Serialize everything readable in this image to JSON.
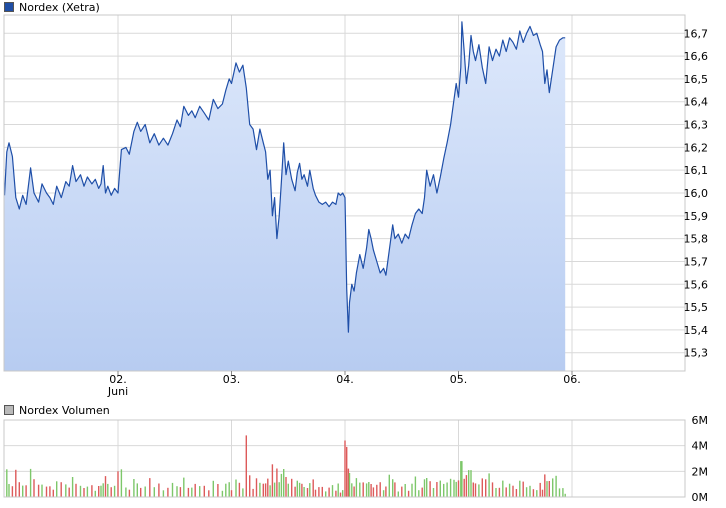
{
  "chart_data": [
    {
      "type": "area",
      "legend_label": "Nordex (Xetra)",
      "line_color": "#1f4fa8",
      "fill_top_color": "#dde8fb",
      "fill_bottom_color": "#b7ccf1",
      "legend_color": "#1f4ea5",
      "grid": true,
      "ylim": [
        15.22,
        16.78
      ],
      "y_ticks": [
        {
          "value": 15.3,
          "label": "15,3"
        },
        {
          "value": 15.4,
          "label": "15,4"
        },
        {
          "value": 15.5,
          "label": "15,5"
        },
        {
          "value": 15.6,
          "label": "15,6"
        },
        {
          "value": 15.7,
          "label": "15,7"
        },
        {
          "value": 15.8,
          "label": "15,8"
        },
        {
          "value": 15.9,
          "label": "15,9"
        },
        {
          "value": 16.0,
          "label": "16,0"
        },
        {
          "value": 16.1,
          "label": "16,1"
        },
        {
          "value": 16.2,
          "label": "16,2"
        },
        {
          "value": 16.3,
          "label": "16,3"
        },
        {
          "value": 16.4,
          "label": "16,4"
        },
        {
          "value": 16.5,
          "label": "16,5"
        },
        {
          "value": 16.6,
          "label": "16,6"
        },
        {
          "value": 16.7,
          "label": "16,7"
        }
      ],
      "x_ticks": [
        {
          "label": "02.",
          "sub": "Juni"
        },
        {
          "label": "03.",
          "sub": ""
        },
        {
          "label": "04.",
          "sub": ""
        },
        {
          "label": "05.",
          "sub": ""
        },
        {
          "label": "06.",
          "sub": ""
        }
      ],
      "series": [
        {
          "points": [
            [
              -1.0,
              15.99
            ],
            [
              -0.98,
              16.18
            ],
            [
              -0.96,
              16.22
            ],
            [
              -0.93,
              16.16
            ],
            [
              -0.9,
              15.98
            ],
            [
              -0.87,
              15.93
            ],
            [
              -0.84,
              15.99
            ],
            [
              -0.81,
              15.95
            ],
            [
              -0.77,
              16.11
            ],
            [
              -0.74,
              16.0
            ],
            [
              -0.7,
              15.96
            ],
            [
              -0.67,
              16.04
            ],
            [
              -0.63,
              16.0
            ],
            [
              -0.6,
              15.98
            ],
            [
              -0.57,
              15.95
            ],
            [
              -0.54,
              16.03
            ],
            [
              -0.5,
              15.98
            ],
            [
              -0.46,
              16.05
            ],
            [
              -0.43,
              16.03
            ],
            [
              -0.4,
              16.12
            ],
            [
              -0.37,
              16.05
            ],
            [
              -0.33,
              16.08
            ],
            [
              -0.3,
              16.03
            ],
            [
              -0.27,
              16.07
            ],
            [
              -0.23,
              16.04
            ],
            [
              -0.2,
              16.06
            ],
            [
              -0.17,
              16.02
            ],
            [
              -0.15,
              16.04
            ],
            [
              -0.13,
              16.12
            ],
            [
              -0.11,
              16.0
            ],
            [
              -0.09,
              16.03
            ],
            [
              -0.06,
              15.99
            ],
            [
              -0.03,
              16.02
            ],
            [
              0.0,
              16.0
            ],
            [
              0.03,
              16.19
            ],
            [
              0.07,
              16.2
            ],
            [
              0.1,
              16.17
            ],
            [
              0.14,
              16.27
            ],
            [
              0.17,
              16.31
            ],
            [
              0.2,
              16.27
            ],
            [
              0.24,
              16.3
            ],
            [
              0.28,
              16.22
            ],
            [
              0.32,
              16.26
            ],
            [
              0.36,
              16.21
            ],
            [
              0.4,
              16.24
            ],
            [
              0.44,
              16.21
            ],
            [
              0.48,
              16.26
            ],
            [
              0.52,
              16.32
            ],
            [
              0.55,
              16.29
            ],
            [
              0.58,
              16.38
            ],
            [
              0.62,
              16.34
            ],
            [
              0.65,
              16.36
            ],
            [
              0.68,
              16.33
            ],
            [
              0.72,
              16.38
            ],
            [
              0.76,
              16.35
            ],
            [
              0.8,
              16.32
            ],
            [
              0.84,
              16.41
            ],
            [
              0.88,
              16.37
            ],
            [
              0.92,
              16.39
            ],
            [
              0.95,
              16.45
            ],
            [
              0.98,
              16.5
            ],
            [
              1.0,
              16.48
            ],
            [
              1.04,
              16.57
            ],
            [
              1.07,
              16.53
            ],
            [
              1.1,
              16.56
            ],
            [
              1.13,
              16.46
            ],
            [
              1.16,
              16.3
            ],
            [
              1.19,
              16.28
            ],
            [
              1.22,
              16.19
            ],
            [
              1.25,
              16.28
            ],
            [
              1.28,
              16.22
            ],
            [
              1.3,
              16.18
            ],
            [
              1.32,
              16.06
            ],
            [
              1.34,
              16.1
            ],
            [
              1.36,
              15.9
            ],
            [
              1.38,
              15.98
            ],
            [
              1.4,
              15.8
            ],
            [
              1.42,
              15.9
            ],
            [
              1.44,
              16.05
            ],
            [
              1.46,
              16.22
            ],
            [
              1.48,
              16.08
            ],
            [
              1.5,
              16.14
            ],
            [
              1.53,
              16.06
            ],
            [
              1.56,
              16.01
            ],
            [
              1.58,
              16.09
            ],
            [
              1.6,
              16.13
            ],
            [
              1.62,
              16.06
            ],
            [
              1.64,
              16.08
            ],
            [
              1.67,
              16.03
            ],
            [
              1.69,
              16.1
            ],
            [
              1.72,
              16.02
            ],
            [
              1.74,
              15.99
            ],
            [
              1.77,
              15.96
            ],
            [
              1.8,
              15.95
            ],
            [
              1.83,
              15.96
            ],
            [
              1.86,
              15.94
            ],
            [
              1.89,
              15.96
            ],
            [
              1.92,
              15.95
            ],
            [
              1.94,
              16.0
            ],
            [
              1.96,
              15.99
            ],
            [
              1.98,
              16.0
            ],
            [
              2.0,
              15.98
            ],
            [
              2.015,
              15.58
            ],
            [
              2.03,
              15.39
            ],
            [
              2.04,
              15.52
            ],
            [
              2.06,
              15.6
            ],
            [
              2.08,
              15.57
            ],
            [
              2.1,
              15.65
            ],
            [
              2.13,
              15.73
            ],
            [
              2.16,
              15.67
            ],
            [
              2.19,
              15.76
            ],
            [
              2.21,
              15.84
            ],
            [
              2.23,
              15.8
            ],
            [
              2.25,
              15.75
            ],
            [
              2.28,
              15.7
            ],
            [
              2.31,
              15.65
            ],
            [
              2.34,
              15.67
            ],
            [
              2.36,
              15.64
            ],
            [
              2.39,
              15.75
            ],
            [
              2.42,
              15.86
            ],
            [
              2.44,
              15.8
            ],
            [
              2.47,
              15.82
            ],
            [
              2.5,
              15.78
            ],
            [
              2.53,
              15.82
            ],
            [
              2.56,
              15.8
            ],
            [
              2.59,
              15.86
            ],
            [
              2.62,
              15.91
            ],
            [
              2.65,
              15.93
            ],
            [
              2.68,
              15.91
            ],
            [
              2.7,
              15.98
            ],
            [
              2.72,
              16.1
            ],
            [
              2.75,
              16.03
            ],
            [
              2.78,
              16.08
            ],
            [
              2.81,
              16.0
            ],
            [
              2.84,
              16.07
            ],
            [
              2.87,
              16.15
            ],
            [
              2.9,
              16.22
            ],
            [
              2.93,
              16.3
            ],
            [
              2.96,
              16.41
            ],
            [
              2.98,
              16.48
            ],
            [
              3.0,
              16.42
            ],
            [
              3.02,
              16.55
            ],
            [
              3.03,
              16.75
            ],
            [
              3.05,
              16.62
            ],
            [
              3.07,
              16.48
            ],
            [
              3.09,
              16.56
            ],
            [
              3.11,
              16.69
            ],
            [
              3.13,
              16.62
            ],
            [
              3.15,
              16.58
            ],
            [
              3.18,
              16.65
            ],
            [
              3.21,
              16.55
            ],
            [
              3.24,
              16.48
            ],
            [
              3.27,
              16.64
            ],
            [
              3.3,
              16.58
            ],
            [
              3.33,
              16.63
            ],
            [
              3.36,
              16.6
            ],
            [
              3.39,
              16.67
            ],
            [
              3.42,
              16.62
            ],
            [
              3.45,
              16.68
            ],
            [
              3.48,
              16.66
            ],
            [
              3.51,
              16.63
            ],
            [
              3.54,
              16.71
            ],
            [
              3.57,
              16.66
            ],
            [
              3.6,
              16.7
            ],
            [
              3.63,
              16.73
            ],
            [
              3.66,
              16.69
            ],
            [
              3.69,
              16.7
            ],
            [
              3.72,
              16.65
            ],
            [
              3.74,
              16.62
            ],
            [
              3.76,
              16.48
            ],
            [
              3.78,
              16.54
            ],
            [
              3.8,
              16.44
            ],
            [
              3.83,
              16.54
            ],
            [
              3.86,
              16.64
            ],
            [
              3.89,
              16.67
            ],
            [
              3.92,
              16.68
            ],
            [
              3.94,
              16.68
            ]
          ]
        }
      ]
    },
    {
      "type": "bar",
      "legend_label": "Nordex Volumen",
      "legend_color": "#b9b9b9",
      "up_color": "#7dc76a",
      "down_color": "#dd5a5a",
      "ylim": [
        0,
        6
      ],
      "y_unit": "M",
      "y_ticks": [
        {
          "value": 0,
          "label": "0M"
        },
        {
          "value": 2,
          "label": "2M"
        },
        {
          "value": 4,
          "label": "4M"
        },
        {
          "value": 6,
          "label": "6M"
        }
      ]
    }
  ]
}
